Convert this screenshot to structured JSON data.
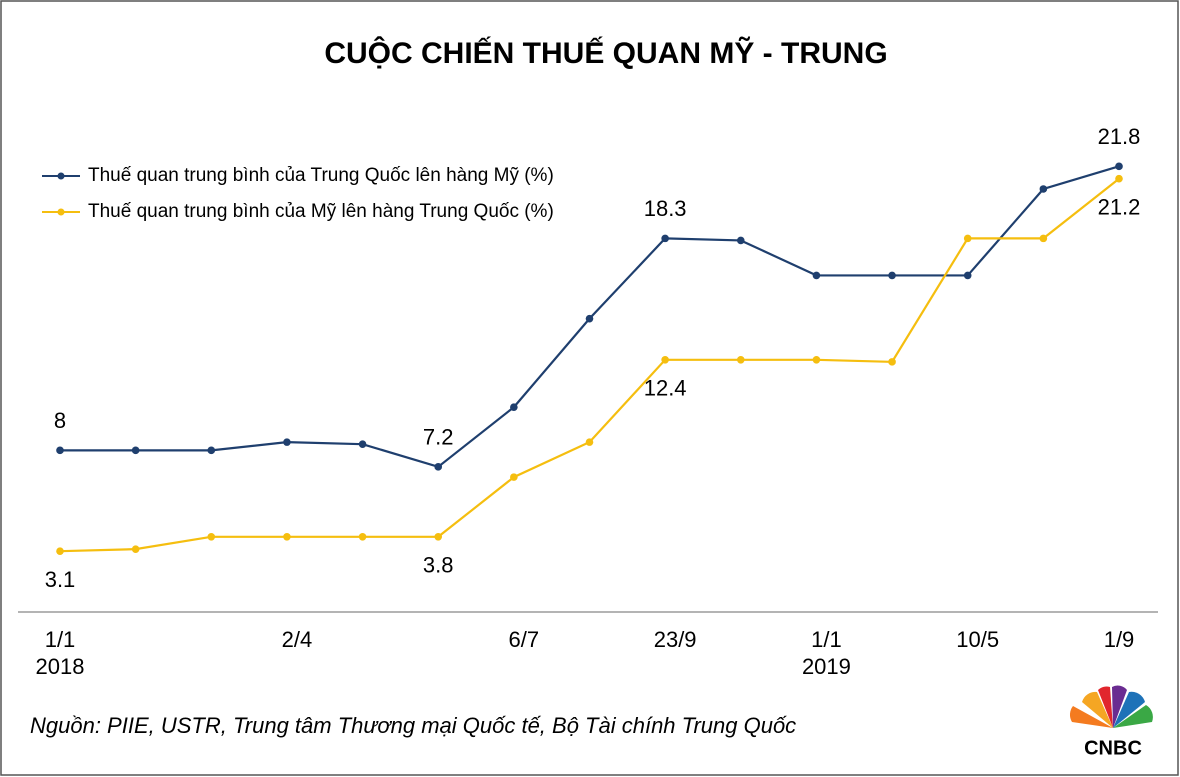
{
  "chart_data": {
    "type": "line",
    "title": "CUỘC CHIẾN THUẾ QUAN MỸ - TRUNG",
    "categories": [
      "1/1\n2018",
      null,
      null,
      "2/4",
      null,
      null,
      "6/7",
      null,
      "23/9",
      null,
      "1/1\n2019",
      null,
      "10/5",
      null,
      "1/9"
    ],
    "series": [
      {
        "name": "Thuế quan trung bình của Trung Quốc lên hàng Mỹ (%)",
        "color": "#1f3f6e",
        "values": [
          8,
          8,
          8,
          8.4,
          8.3,
          7.2,
          10.1,
          14.4,
          18.3,
          18.2,
          16.5,
          16.5,
          16.5,
          20.7,
          21.8
        ]
      },
      {
        "name": "Thuế quan trung bình của Mỹ lên hàng Trung Quốc (%)",
        "color": "#f5be0f",
        "values": [
          3.1,
          3.2,
          3.8,
          3.8,
          3.8,
          3.8,
          6.7,
          8.4,
          12.4,
          12.4,
          12.4,
          12.3,
          18.3,
          18.3,
          21.2
        ]
      }
    ],
    "labeled_points": [
      0,
      5,
      8,
      14
    ],
    "ylim": [
      0,
      24
    ],
    "legend": "upper left",
    "source": "Nguồn: PIIE, USTR, Trung tâm Thương mại Quốc tế, Bộ Tài chính Trung Quốc",
    "logo": "CNBC"
  }
}
